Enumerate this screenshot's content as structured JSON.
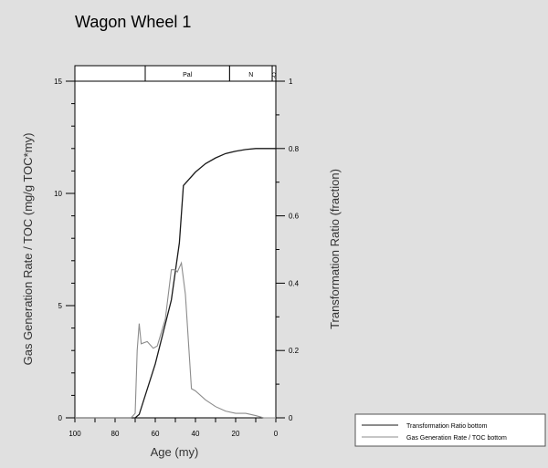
{
  "chart_data": {
    "type": "line",
    "title": "Wagon Wheel 1",
    "xlabel": "Age (my)",
    "ylabel": "Gas Generation Rate / TOC (mg/g TOC*my)",
    "y2label": "Transformation Ratio (fraction)",
    "xlim": [
      100,
      0
    ],
    "ylim": [
      0,
      15
    ],
    "y2lim": [
      0,
      1
    ],
    "xticks": [
      "100",
      "80",
      "60",
      "40",
      "20",
      "0"
    ],
    "yticks": [
      "0",
      "5",
      "10",
      "15"
    ],
    "y2ticks": [
      "0",
      "0.2",
      "0.4",
      "0.6",
      "0.8",
      "1"
    ],
    "periods": [
      {
        "label": "",
        "from": 100,
        "to": 65
      },
      {
        "label": "Pal",
        "from": 65,
        "to": 23
      },
      {
        "label": "N",
        "from": 23,
        "to": 1.8
      },
      {
        "label": "Q",
        "from": 1.8,
        "to": 0
      }
    ],
    "legend_position": "bottom-right",
    "series": [
      {
        "name": "Transformation Ratio bottom",
        "axis": "right",
        "color": "#1a1a1a",
        "x": [
          100,
          70,
          68,
          60,
          52,
          48,
          46,
          40,
          35,
          30,
          25,
          20,
          15,
          10,
          5,
          0
        ],
        "y": [
          0,
          0,
          0.01,
          0.16,
          0.35,
          0.52,
          0.69,
          0.73,
          0.755,
          0.772,
          0.785,
          0.792,
          0.797,
          0.8,
          0.8,
          0.8
        ]
      },
      {
        "name": "Gas Generation Rate / TOC bottom",
        "axis": "left",
        "color": "#8c8c8c",
        "x": [
          100,
          72,
          70,
          69,
          68,
          67,
          64,
          61,
          59,
          55,
          52,
          50,
          49,
          48,
          47,
          45,
          42,
          40,
          35,
          30,
          25,
          20,
          15,
          10,
          6,
          0
        ],
        "y": [
          0,
          0,
          0.2,
          3,
          4.2,
          3.3,
          3.4,
          3.1,
          3.2,
          4.4,
          6.6,
          6.6,
          6.5,
          6.7,
          6.9,
          5.5,
          1.3,
          1.2,
          0.8,
          0.5,
          0.3,
          0.2,
          0.2,
          0.1,
          0,
          0
        ]
      }
    ]
  }
}
